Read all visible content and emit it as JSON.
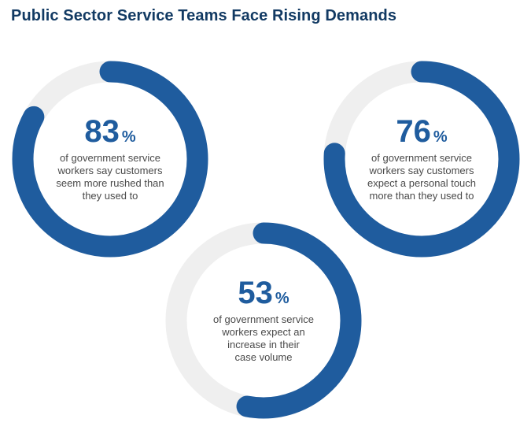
{
  "title": "Public Sector Service Teams Face Rising Demands",
  "colors": {
    "ring_fill": "#1f5c9e",
    "ring_track": "#efefef",
    "title": "#123a63",
    "text": "#4a4a4a"
  },
  "chart_data": {
    "type": "donut",
    "items": [
      {
        "value": 83,
        "unit": "%",
        "caption": [
          "of government service",
          "workers say customers",
          "seem more rushed than",
          "they used to"
        ]
      },
      {
        "value": 76,
        "unit": "%",
        "caption": [
          "of government service",
          "workers say customers",
          "expect a personal touch",
          "more than they used to"
        ]
      },
      {
        "value": 53,
        "unit": "%",
        "caption": [
          "of government service",
          "workers expect an",
          "increase in their",
          "case volume"
        ]
      }
    ]
  }
}
